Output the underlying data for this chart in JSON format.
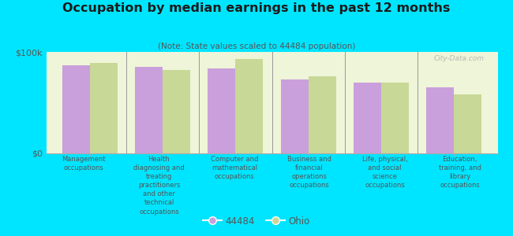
{
  "title": "Occupation by median earnings in the past 12 months",
  "subtitle": "(Note: State values scaled to 44484 population)",
  "categories": [
    "Management\noccupations",
    "Health\ndiagnosing and\ntreating\npractitioners\nand other\ntechnical\noccupations",
    "Computer and\nmathematical\noccupations",
    "Business and\nfinancial\noperations\noccupations",
    "Life, physical,\nand social\nscience\noccupations",
    "Education,\ntraining, and\nlibrary\noccupations"
  ],
  "values_44484": [
    87000,
    85000,
    84000,
    73000,
    70000,
    65000
  ],
  "values_ohio": [
    89000,
    82000,
    93000,
    76000,
    70000,
    58000
  ],
  "color_44484": "#c9a0dc",
  "color_ohio": "#c8d896",
  "ylim": [
    0,
    100000
  ],
  "ytick_labels": [
    "$0",
    "$100k"
  ],
  "background_color": "#eef5d8",
  "outer_background": "#00e5ff",
  "watermark": "City-Data.com",
  "legend_label_44484": "44484",
  "legend_label_ohio": "Ohio",
  "bar_width": 0.38,
  "title_color": "#1a1a1a",
  "subtitle_color": "#555555",
  "label_color": "#555555"
}
